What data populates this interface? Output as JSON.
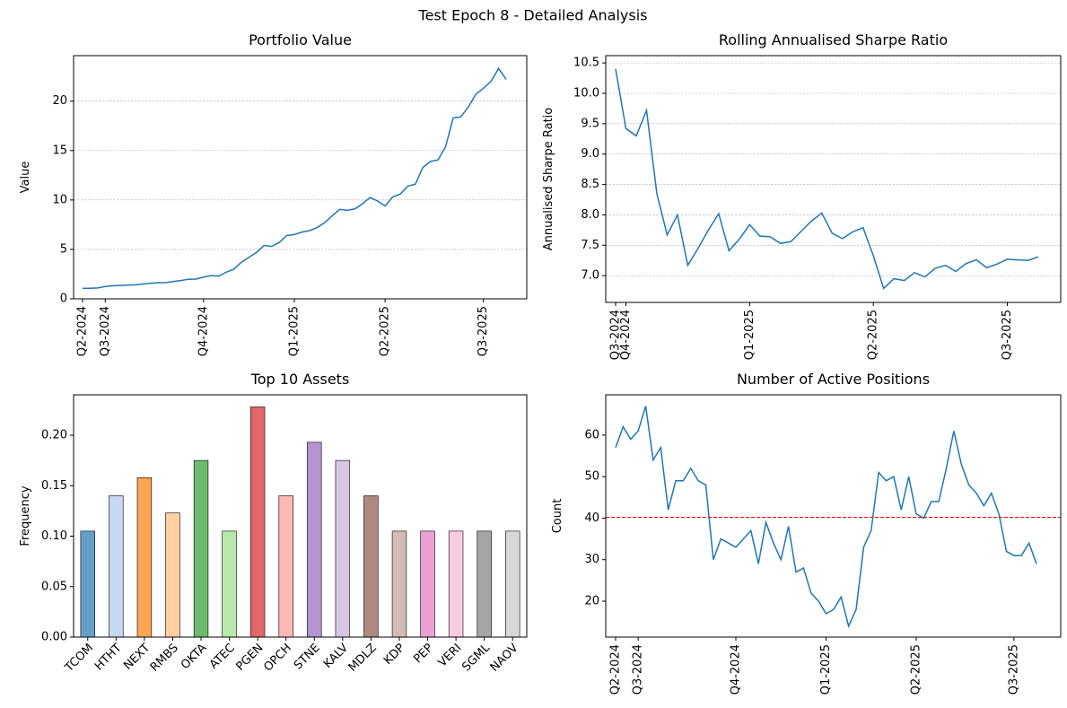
{
  "title": "Test Epoch 8 - Detailed Analysis",
  "chart_data": [
    {
      "type": "line",
      "title": "Portfolio Value",
      "y_label": "Value",
      "color": "#1f77b4",
      "grid": true,
      "categories": [
        "Q2-2024",
        null,
        null,
        "Q3-2024",
        null,
        null,
        null,
        null,
        null,
        null,
        null,
        null,
        null,
        null,
        null,
        null,
        "Q4-2024",
        null,
        null,
        null,
        null,
        null,
        null,
        null,
        null,
        null,
        null,
        null,
        "Q1-2025",
        null,
        null,
        null,
        null,
        null,
        null,
        null,
        null,
        null,
        null,
        null,
        "Q2-2025",
        null,
        null,
        null,
        null,
        null,
        null,
        null,
        null,
        null,
        null,
        null,
        null,
        "Q3-2025",
        null,
        null,
        null
      ],
      "values": [
        1.05,
        1.07,
        1.1,
        1.25,
        1.32,
        1.35,
        1.38,
        1.42,
        1.5,
        1.58,
        1.62,
        1.65,
        1.75,
        1.85,
        1.98,
        2.0,
        2.2,
        2.35,
        2.3,
        2.7,
        3.0,
        3.7,
        4.2,
        4.7,
        5.4,
        5.3,
        5.7,
        6.4,
        6.5,
        6.75,
        6.9,
        7.2,
        7.7,
        8.4,
        9.05,
        8.95,
        9.1,
        9.6,
        10.25,
        9.9,
        9.4,
        10.3,
        10.6,
        11.4,
        11.6,
        13.3,
        13.9,
        14.05,
        15.4,
        18.3,
        18.4,
        19.4,
        20.7,
        21.3,
        22.0,
        23.3,
        22.2
      ],
      "ylim": [
        0,
        24.6
      ],
      "yticks": [
        0,
        5,
        10,
        15,
        20
      ]
    },
    {
      "type": "line",
      "title": "Rolling Annualised Sharpe Ratio",
      "y_label": "Annualised Sharpe Ratio",
      "color": "#1f77b4",
      "grid": true,
      "categories": [
        "Q3-2024",
        "Q4-2024",
        null,
        null,
        null,
        null,
        null,
        null,
        null,
        null,
        null,
        null,
        null,
        "Q1-2025",
        null,
        null,
        null,
        null,
        null,
        null,
        null,
        null,
        null,
        null,
        null,
        "Q2-2025",
        null,
        null,
        null,
        null,
        null,
        null,
        null,
        null,
        null,
        null,
        null,
        null,
        "Q3-2025",
        null,
        null,
        null
      ],
      "values": [
        10.4,
        9.42,
        9.3,
        9.72,
        8.35,
        7.67,
        8.0,
        7.17,
        7.45,
        7.75,
        8.02,
        7.41,
        7.6,
        7.84,
        7.65,
        7.64,
        7.53,
        7.56,
        7.73,
        7.9,
        8.03,
        7.7,
        7.61,
        7.72,
        7.79,
        7.33,
        6.79,
        6.95,
        6.92,
        7.05,
        6.98,
        7.12,
        7.17,
        7.07,
        7.2,
        7.26,
        7.13,
        7.19,
        7.27,
        7.26,
        7.25,
        7.31
      ],
      "ylim": [
        6.56,
        10.62
      ],
      "yticks": [
        {
          "value": 7,
          "label": "7.0"
        },
        7.5,
        {
          "value": 8,
          "label": "8.0"
        },
        8.5,
        {
          "value": 9,
          "label": "9.0"
        },
        9.5,
        {
          "value": 10,
          "label": "10.0"
        },
        10.5
      ]
    },
    {
      "type": "bar",
      "title": "Top 10 Assets",
      "y_label": "Frequency",
      "grid": false,
      "categories": [
        "TCOM",
        "HTHT",
        "NEXT",
        "RMBS",
        "OKTA",
        "ATEC",
        "PGEN",
        "OPCH",
        "STNE",
        "KALV",
        "MDLZ",
        "KDP",
        "PEP",
        "VERI",
        "SGML",
        "NAOV"
      ],
      "values": [
        0.105,
        0.14,
        0.158,
        0.123,
        0.175,
        0.105,
        0.228,
        0.14,
        0.193,
        0.175,
        0.14,
        0.105,
        0.105,
        0.105,
        0.105,
        0.105
      ],
      "colors": [
        "#1f77b4",
        "#aec7e8",
        "#ff7f0e",
        "#ffbb78",
        "#2ca02c",
        "#98df8a",
        "#d62728",
        "#ff9896",
        "#9467bd",
        "#c5b0d5",
        "#8c564b",
        "#c49c94",
        "#e377c2",
        "#f7b6d2",
        "#7f7f7f",
        "#c7c7c7"
      ],
      "ylim": [
        0,
        0.24
      ],
      "yticks": [
        {
          "value": 0,
          "label": "0.00"
        },
        {
          "value": 0.05,
          "label": "0.05"
        },
        {
          "value": 0.1,
          "label": "0.10"
        },
        {
          "value": 0.15,
          "label": "0.15"
        },
        {
          "value": 0.2,
          "label": "0.20"
        }
      ]
    },
    {
      "type": "line",
      "title": "Number of Active Positions",
      "y_label": "Count",
      "color": "#1f77b4",
      "grid": false,
      "categories": [
        "Q2-2024",
        null,
        null,
        "Q3-2024",
        null,
        null,
        null,
        null,
        null,
        null,
        null,
        null,
        null,
        null,
        null,
        null,
        "Q4-2024",
        null,
        null,
        null,
        null,
        null,
        null,
        null,
        null,
        null,
        null,
        null,
        "Q1-2025",
        null,
        null,
        null,
        null,
        null,
        null,
        null,
        null,
        null,
        null,
        null,
        "Q2-2025",
        null,
        null,
        null,
        null,
        null,
        null,
        null,
        null,
        null,
        null,
        null,
        null,
        "Q3-2025",
        null,
        null,
        null
      ],
      "values": [
        57,
        62,
        59,
        61,
        67,
        54,
        57,
        42,
        49,
        49,
        52,
        49,
        48,
        30,
        35,
        34,
        33,
        35,
        37,
        29,
        39,
        34,
        30,
        38,
        27,
        28,
        22,
        20,
        17,
        18,
        21,
        14,
        18,
        33,
        37,
        51,
        49,
        50,
        42,
        50,
        41,
        40,
        44,
        44,
        52,
        61,
        53,
        48,
        46,
        43,
        46,
        41,
        32,
        31,
        31,
        34,
        29
      ],
      "hline": 40.2,
      "hline_color": "#ff0000",
      "ylim": [
        11.35,
        69.7
      ],
      "yticks": [
        20,
        30,
        40,
        50,
        60
      ]
    }
  ]
}
